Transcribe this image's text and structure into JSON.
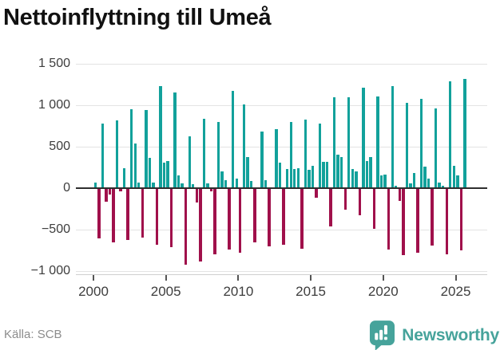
{
  "title": "Nettoinflyttning till Umeå",
  "source": "Källa: SCB",
  "brand": {
    "name": "Newsworthy",
    "color": "#46a39b"
  },
  "chart_data": {
    "type": "bar",
    "title": "Nettoinflyttning till Umeå",
    "frequency": "quarterly",
    "x_start_year": 2000,
    "x_end": "2025 Q3",
    "ylim": [
      -1000,
      1500
    ],
    "grid": true,
    "legend": "none",
    "colors": {
      "positive": "#12a19b",
      "negative": "#a0104b"
    },
    "yticks": [
      {
        "value": 1500,
        "label": "1 500"
      },
      {
        "value": 1000,
        "label": "1 000"
      },
      {
        "value": 500,
        "label": "500"
      },
      {
        "value": 0,
        "label": "0"
      },
      {
        "value": -500,
        "label": "−500"
      },
      {
        "value": -1000,
        "label": "−1 000"
      }
    ],
    "xticks": [
      {
        "value": 2000,
        "label": "2000"
      },
      {
        "value": 2005,
        "label": "2005"
      },
      {
        "value": 2010,
        "label": "2010"
      },
      {
        "value": 2015,
        "label": "2015"
      },
      {
        "value": 2020,
        "label": "2020"
      },
      {
        "value": 2025,
        "label": "2025"
      }
    ],
    "values": [
      70,
      -600,
      780,
      -150,
      -70,
      -650,
      820,
      -30,
      240,
      -620,
      950,
      540,
      70,
      -590,
      940,
      370,
      70,
      -670,
      1230,
      310,
      330,
      -700,
      1160,
      150,
      60,
      -920,
      630,
      50,
      -160,
      -880,
      840,
      60,
      -30,
      -790,
      800,
      200,
      100,
      -730,
      1180,
      120,
      -770,
      1010,
      380,
      90,
      -645,
      null,
      680,
      100,
      -690,
      null,
      715,
      305,
      -670,
      230,
      800,
      230,
      240,
      -720,
      825,
      225,
      270,
      -110,
      780,
      320,
      320,
      -450,
      1100,
      400,
      380,
      -250,
      1100,
      230,
      200,
      -320,
      1210,
      330,
      375,
      -480,
      1110,
      150,
      160,
      -730,
      1230,
      30,
      -145,
      -800,
      1030,
      60,
      185,
      -770,
      1080,
      260,
      120,
      -680,
      960,
      70,
      30,
      -790,
      1290,
      265,
      150,
      -740,
      1320
    ]
  }
}
